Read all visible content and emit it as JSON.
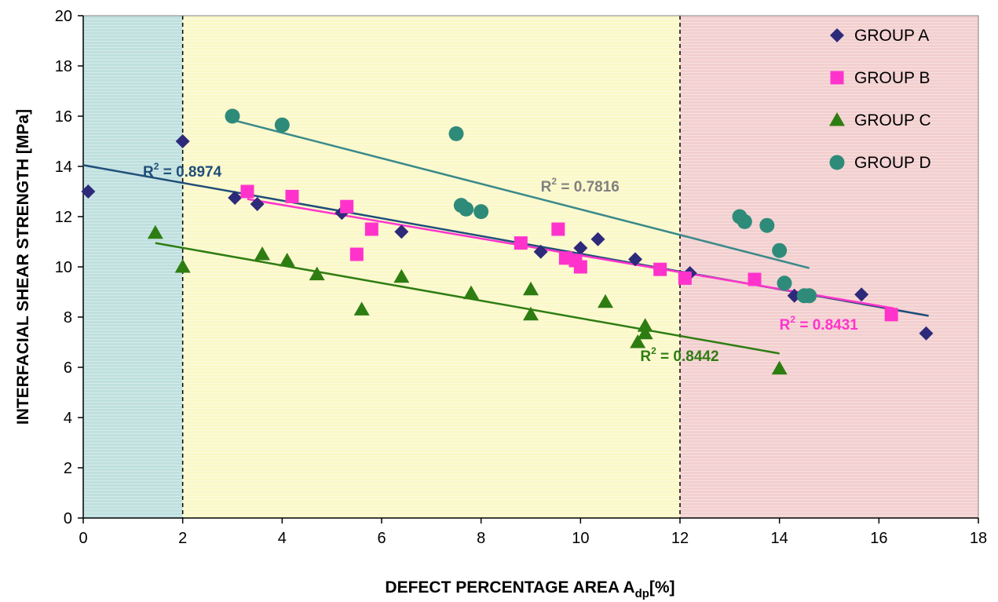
{
  "chart_data": {
    "type": "scatter",
    "xlabel": "DEFECT PERCENTAGE AREA A",
    "xlabel_sub": "dp",
    "xlabel_suffix": "[%]",
    "ylabel": "INTERFACIAL SHEAR STRENGTH [MPa]",
    "xlim": [
      0,
      18
    ],
    "ylim": [
      0,
      20
    ],
    "xticks": [
      "0",
      "2",
      "4",
      "6",
      "8",
      "10",
      "12",
      "14",
      "16",
      "18"
    ],
    "yticks": [
      "0",
      "2",
      "4",
      "6",
      "8",
      "10",
      "12",
      "14",
      "16",
      "18",
      "20"
    ],
    "grid": false,
    "legend_position": "top-right",
    "zones": [
      {
        "x0": 0,
        "x1": 2,
        "color": "#bfe0df"
      },
      {
        "x0": 2,
        "x1": 12,
        "color": "#fbf8c9"
      },
      {
        "x0": 12,
        "x1": 18,
        "color": "#f3cfcf"
      }
    ],
    "dividers": [
      2,
      12
    ],
    "series": [
      {
        "name": "GROUP A",
        "marker": "diamond",
        "color": "#2e2a7a",
        "points": [
          [
            0.1,
            13.0
          ],
          [
            2.0,
            15.0
          ],
          [
            3.05,
            12.75
          ],
          [
            3.5,
            12.5
          ],
          [
            5.2,
            12.15
          ],
          [
            6.4,
            11.4
          ],
          [
            9.2,
            10.6
          ],
          [
            10.0,
            10.75
          ],
          [
            10.35,
            11.1
          ],
          [
            11.1,
            10.3
          ],
          [
            12.2,
            9.75
          ],
          [
            14.3,
            8.85
          ],
          [
            15.65,
            8.9
          ],
          [
            16.95,
            7.35
          ]
        ],
        "trend": {
          "x": [
            0,
            17
          ],
          "y": [
            14.05,
            8.05
          ],
          "color": "#1f4e79"
        },
        "r2": {
          "label": "R",
          "sup": "2",
          "value": " = 0.8974",
          "x": 1.2,
          "y": 13.6,
          "color": "#1f4e79"
        }
      },
      {
        "name": "GROUP B",
        "marker": "square",
        "color": "#ff33cc",
        "points": [
          [
            3.3,
            13.0
          ],
          [
            4.2,
            12.8
          ],
          [
            5.3,
            12.4
          ],
          [
            5.8,
            11.5
          ],
          [
            5.5,
            10.5
          ],
          [
            8.8,
            10.95
          ],
          [
            9.55,
            11.5
          ],
          [
            9.7,
            10.35
          ],
          [
            9.9,
            10.25
          ],
          [
            10.0,
            10.0
          ],
          [
            11.6,
            9.9
          ],
          [
            12.1,
            9.55
          ],
          [
            13.5,
            9.5
          ],
          [
            16.25,
            8.1
          ]
        ],
        "trend": {
          "x": [
            3.3,
            16.3
          ],
          "y": [
            12.7,
            8.35
          ],
          "color": "#ff33cc"
        },
        "r2": {
          "label": "R",
          "sup": "2",
          "value": " = 0.8431",
          "x": 14.0,
          "y": 7.5,
          "color": "#ff33cc"
        }
      },
      {
        "name": "GROUP C",
        "marker": "triangle",
        "color": "#2e7d12",
        "points": [
          [
            1.45,
            11.35
          ],
          [
            2.0,
            10.0
          ],
          [
            3.6,
            10.5
          ],
          [
            4.1,
            10.25
          ],
          [
            4.7,
            9.7
          ],
          [
            5.6,
            8.3
          ],
          [
            6.4,
            9.6
          ],
          [
            7.8,
            8.95
          ],
          [
            9.0,
            9.1
          ],
          [
            9.0,
            8.1
          ],
          [
            10.5,
            8.6
          ],
          [
            11.15,
            7.0
          ],
          [
            11.3,
            7.35
          ],
          [
            11.3,
            7.65
          ],
          [
            14.0,
            5.95
          ]
        ],
        "trend": {
          "x": [
            1.45,
            14.0
          ],
          "y": [
            10.95,
            6.55
          ],
          "color": "#2e7d12"
        },
        "r2": {
          "label": "R",
          "sup": "2",
          "value": " = 0.8442",
          "x": 11.2,
          "y": 6.25,
          "color": "#2e7d12"
        }
      },
      {
        "name": "GROUP D",
        "marker": "circle",
        "color": "#2e8b7a",
        "points": [
          [
            3.0,
            16.0
          ],
          [
            4.0,
            15.65
          ],
          [
            7.5,
            15.3
          ],
          [
            7.6,
            12.45
          ],
          [
            7.7,
            12.3
          ],
          [
            8.0,
            12.2
          ],
          [
            13.2,
            12.0
          ],
          [
            13.3,
            11.8
          ],
          [
            13.75,
            11.65
          ],
          [
            14.0,
            10.65
          ],
          [
            14.1,
            9.35
          ],
          [
            14.5,
            8.85
          ],
          [
            14.6,
            8.85
          ]
        ],
        "trend": {
          "x": [
            3.0,
            14.6
          ],
          "y": [
            15.85,
            9.95
          ],
          "color": "#3a8a8a"
        },
        "r2": {
          "label": "R",
          "sup": "2",
          "value": " = 0.7816",
          "x": 9.2,
          "y": 13.0,
          "color": "#808080"
        }
      }
    ]
  }
}
